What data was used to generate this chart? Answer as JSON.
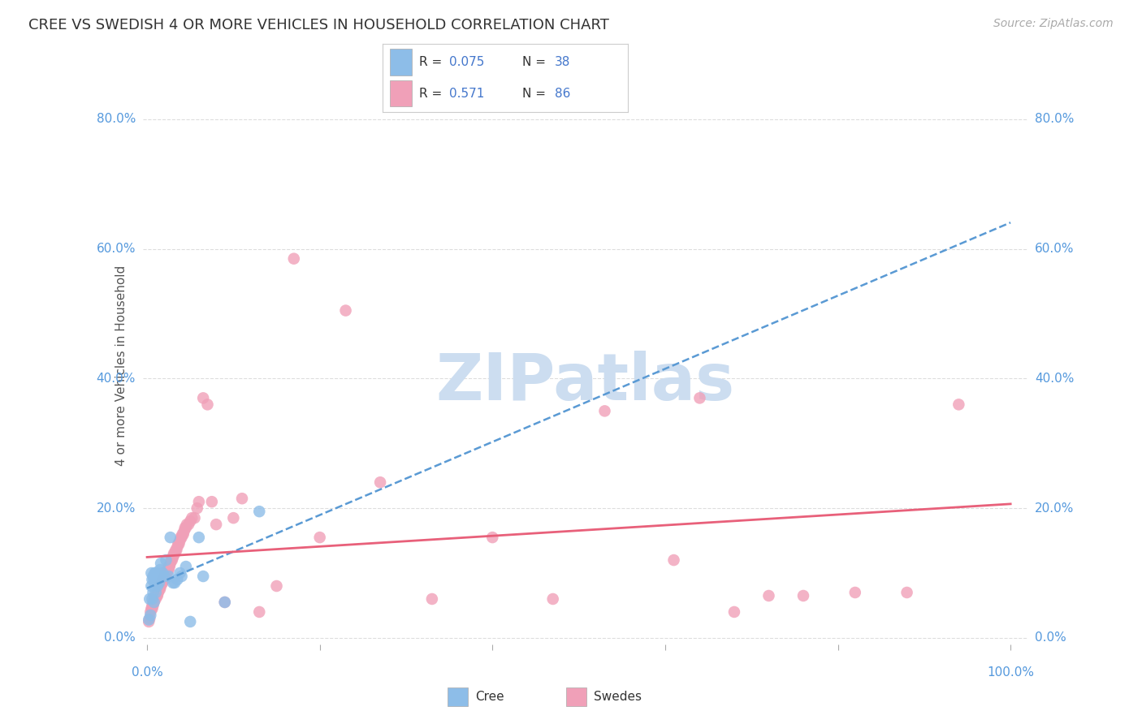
{
  "title": "CREE VS SWEDISH 4 OR MORE VEHICLES IN HOUSEHOLD CORRELATION CHART",
  "source": "Source: ZipAtlas.com",
  "ylabel": "4 or more Vehicles in Household",
  "xlim": [
    -0.005,
    1.02
  ],
  "ylim": [
    -0.01,
    0.85
  ],
  "xticks": [
    0.0,
    0.2,
    0.4,
    0.6,
    0.8,
    1.0
  ],
  "yticks": [
    0.0,
    0.2,
    0.4,
    0.6,
    0.8
  ],
  "xticklabels_left": "0.0%",
  "xticklabels_right": "100.0%",
  "yticklabels": [
    "0.0%",
    "20.0%",
    "40.0%",
    "60.0%",
    "80.0%"
  ],
  "cree_color": "#8dbde8",
  "swedes_color": "#f0a0b8",
  "trend_cree_color": "#5a9ad4",
  "trend_swedes_color": "#e8607a",
  "background_color": "#ffffff",
  "grid_color": "#dddddd",
  "title_color": "#333333",
  "axis_tick_color": "#5599dd",
  "watermark_text": "ZIPatlas",
  "watermark_color": "#ccddf0",
  "legend_R_N_color": "#4477cc",
  "cree_R": "0.075",
  "cree_N": "38",
  "swedes_R": "0.571",
  "swedes_N": "86",
  "cree_x": [
    0.002,
    0.003,
    0.004,
    0.005,
    0.005,
    0.006,
    0.006,
    0.007,
    0.007,
    0.008,
    0.008,
    0.009,
    0.009,
    0.01,
    0.01,
    0.011,
    0.011,
    0.012,
    0.013,
    0.014,
    0.015,
    0.016,
    0.018,
    0.02,
    0.022,
    0.025,
    0.027,
    0.03,
    0.032,
    0.035,
    0.038,
    0.04,
    0.045,
    0.05,
    0.06,
    0.065,
    0.09,
    0.13
  ],
  "cree_y": [
    0.028,
    0.06,
    0.035,
    0.08,
    0.1,
    0.06,
    0.09,
    0.07,
    0.095,
    0.055,
    0.09,
    0.08,
    0.1,
    0.07,
    0.1,
    0.085,
    0.1,
    0.08,
    0.095,
    0.085,
    0.105,
    0.115,
    0.1,
    0.095,
    0.12,
    0.095,
    0.155,
    0.085,
    0.085,
    0.09,
    0.1,
    0.095,
    0.11,
    0.025,
    0.155,
    0.095,
    0.055,
    0.195
  ],
  "swedes_x": [
    0.002,
    0.003,
    0.004,
    0.005,
    0.006,
    0.006,
    0.007,
    0.007,
    0.008,
    0.009,
    0.01,
    0.01,
    0.011,
    0.012,
    0.012,
    0.013,
    0.013,
    0.014,
    0.015,
    0.015,
    0.016,
    0.017,
    0.018,
    0.018,
    0.019,
    0.02,
    0.021,
    0.021,
    0.022,
    0.023,
    0.024,
    0.025,
    0.025,
    0.026,
    0.027,
    0.028,
    0.029,
    0.03,
    0.03,
    0.031,
    0.032,
    0.033,
    0.034,
    0.035,
    0.036,
    0.037,
    0.038,
    0.039,
    0.04,
    0.041,
    0.042,
    0.043,
    0.044,
    0.045,
    0.046,
    0.048,
    0.05,
    0.052,
    0.055,
    0.058,
    0.06,
    0.065,
    0.07,
    0.075,
    0.08,
    0.09,
    0.1,
    0.11,
    0.13,
    0.15,
    0.17,
    0.2,
    0.23,
    0.27,
    0.33,
    0.4,
    0.47,
    0.53,
    0.61,
    0.64,
    0.68,
    0.72,
    0.76,
    0.82,
    0.88,
    0.94
  ],
  "swedes_y": [
    0.025,
    0.03,
    0.04,
    0.045,
    0.045,
    0.05,
    0.05,
    0.055,
    0.055,
    0.06,
    0.06,
    0.065,
    0.065,
    0.065,
    0.07,
    0.07,
    0.075,
    0.075,
    0.075,
    0.08,
    0.08,
    0.085,
    0.085,
    0.09,
    0.09,
    0.09,
    0.095,
    0.1,
    0.1,
    0.1,
    0.105,
    0.105,
    0.11,
    0.11,
    0.115,
    0.12,
    0.12,
    0.125,
    0.125,
    0.13,
    0.13,
    0.135,
    0.135,
    0.14,
    0.145,
    0.145,
    0.15,
    0.155,
    0.155,
    0.16,
    0.16,
    0.165,
    0.17,
    0.17,
    0.175,
    0.175,
    0.18,
    0.185,
    0.185,
    0.2,
    0.21,
    0.37,
    0.36,
    0.21,
    0.175,
    0.055,
    0.185,
    0.215,
    0.04,
    0.08,
    0.585,
    0.155,
    0.505,
    0.24,
    0.06,
    0.155,
    0.06,
    0.35,
    0.12,
    0.37,
    0.04,
    0.065,
    0.065,
    0.07,
    0.07,
    0.36
  ]
}
